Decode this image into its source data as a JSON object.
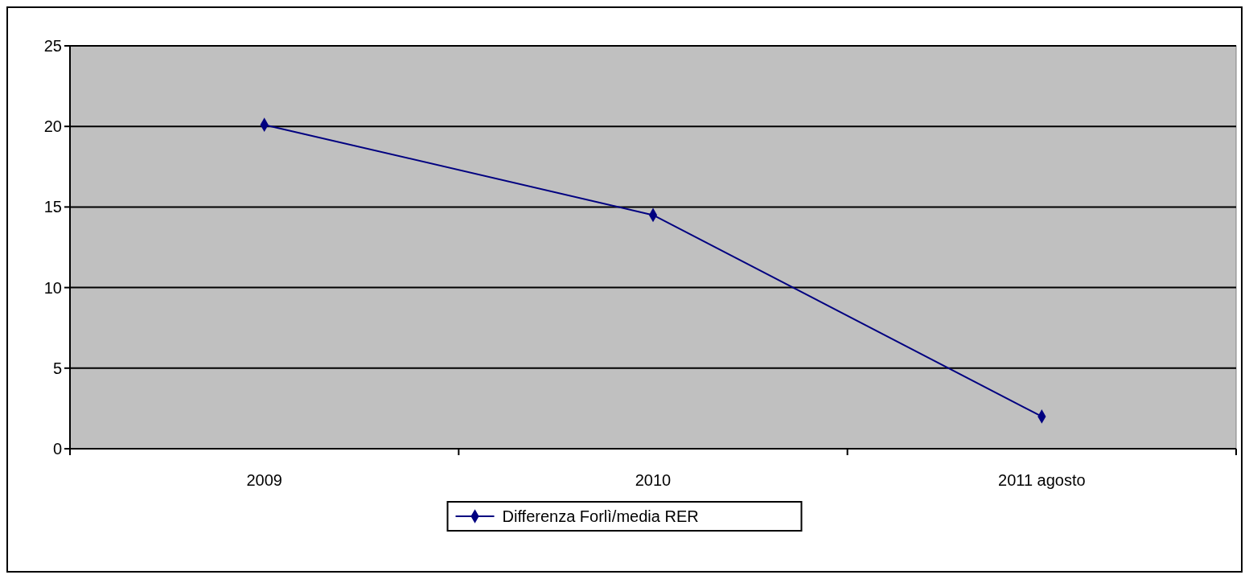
{
  "chart_data": {
    "type": "line",
    "categories": [
      "2009",
      "2010",
      "2011 agosto"
    ],
    "series": [
      {
        "name": "Differenza Forlì/media RER",
        "color": "#000080",
        "values": [
          20.1,
          14.5,
          2.0
        ]
      }
    ],
    "ylim": [
      0,
      25
    ],
    "yticks": [
      0,
      5,
      10,
      15,
      20,
      25
    ],
    "grid": "y",
    "legend": "bottom",
    "marker": "diamond",
    "line_style": "solid"
  }
}
